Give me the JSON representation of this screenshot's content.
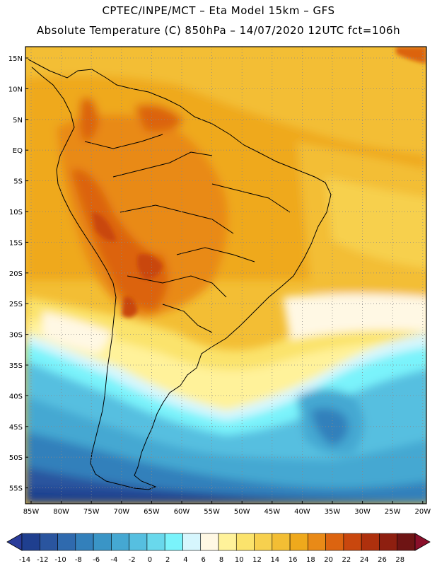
{
  "header": {
    "line1": "CPTEC/INPE/MCT –  Eta Model 15km – GFS",
    "line2": "Absolute Temperature (C) 850hPa – 14/07/2020 12UTC fct=106h"
  },
  "axes": {
    "lat_labels": [
      "15N",
      "10N",
      "5N",
      "EQ",
      "5S",
      "10S",
      "15S",
      "20S",
      "25S",
      "30S",
      "35S",
      "40S",
      "45S",
      "50S",
      "55S"
    ],
    "lon_labels": [
      "85W",
      "80W",
      "75W",
      "70W",
      "65W",
      "60W",
      "55W",
      "50W",
      "45W",
      "40W",
      "35W",
      "30W",
      "25W",
      "20W"
    ]
  },
  "colorbar": {
    "labels": [
      "-14",
      "-12",
      "-10",
      "-8",
      "-6",
      "-4",
      "-2",
      "0",
      "2",
      "4",
      "6",
      "8",
      "10",
      "12",
      "14",
      "16",
      "18",
      "20",
      "22",
      "24",
      "26",
      "28"
    ],
    "colors": [
      "#1f3f8f",
      "#2a559f",
      "#2f6aae",
      "#3380bb",
      "#3a95c6",
      "#45a8d2",
      "#56bfe0",
      "#69d8ec",
      "#7af3fb",
      "#d6f6fd",
      "#fff8e4",
      "#fff29a",
      "#fbe36c",
      "#f7d04e",
      "#f3be34",
      "#efa91c",
      "#e98a17",
      "#dc6410",
      "#c9470e",
      "#ae300d",
      "#8e1f10",
      "#6e1414"
    ],
    "under_color": "#2a3c9a",
    "over_color": "#8a0f2a"
  }
}
